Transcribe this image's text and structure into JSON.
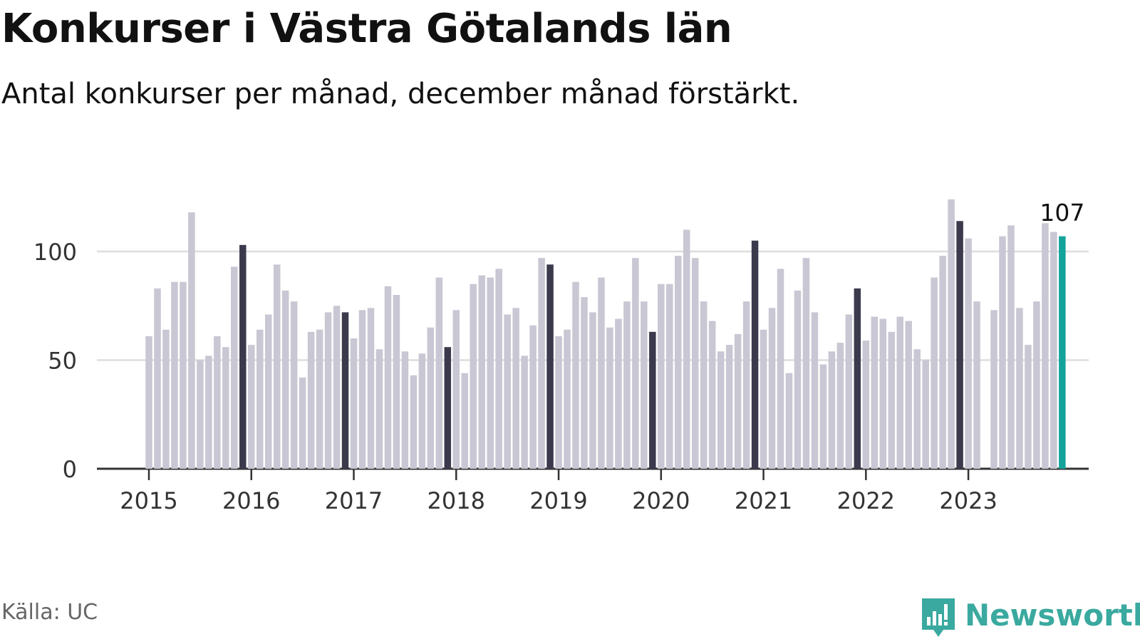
{
  "header": {
    "title": "Konkurser i Västra Götalands län",
    "subtitle": "Antal konkurser per månad, december månad förstärkt."
  },
  "footer": {
    "source": "Källa: UC",
    "brand": "Newsworthy",
    "brand_icon": "bar-chart-icon"
  },
  "colors": {
    "regular_bar": "#c8c7d3",
    "december_bar": "#3b3a4d",
    "latest_bar": "#14a39a",
    "gridline": "#dddddd",
    "axis": "#333333",
    "brand": "#3aa99f"
  },
  "chart_data": {
    "type": "bar",
    "title": "Konkurser i Västra Götalands län",
    "subtitle": "Antal konkurser per månad, december månad förstärkt.",
    "xlabel": "",
    "ylabel": "",
    "ylim": [
      0,
      128
    ],
    "yticks": [
      0,
      50,
      100
    ],
    "grid": true,
    "legend": "none",
    "x_tick_labels": [
      "2015",
      "2016",
      "2017",
      "2018",
      "2019",
      "2020",
      "2021",
      "2022",
      "2023"
    ],
    "start": "2015-01",
    "end": "2023-12",
    "highlight": "december",
    "latest_value_label": "107",
    "values": [
      61,
      83,
      64,
      86,
      86,
      118,
      50,
      52,
      61,
      56,
      93,
      103,
      57,
      64,
      71,
      94,
      82,
      77,
      42,
      63,
      64,
      72,
      75,
      72,
      60,
      73,
      74,
      55,
      84,
      80,
      54,
      43,
      53,
      65,
      88,
      56,
      73,
      44,
      85,
      89,
      88,
      92,
      71,
      74,
      52,
      66,
      97,
      94,
      61,
      64,
      86,
      79,
      72,
      88,
      65,
      69,
      77,
      97,
      77,
      63,
      85,
      85,
      98,
      110,
      97,
      77,
      68,
      54,
      57,
      62,
      77,
      105,
      64,
      74,
      92,
      44,
      82,
      97,
      72,
      48,
      54,
      58,
      71,
      83,
      59,
      70,
      69,
      63,
      70,
      68,
      55,
      50,
      88,
      98,
      124,
      114,
      106,
      77,
      null,
      73,
      107,
      112,
      74,
      57,
      77,
      113,
      109,
      107
    ]
  }
}
